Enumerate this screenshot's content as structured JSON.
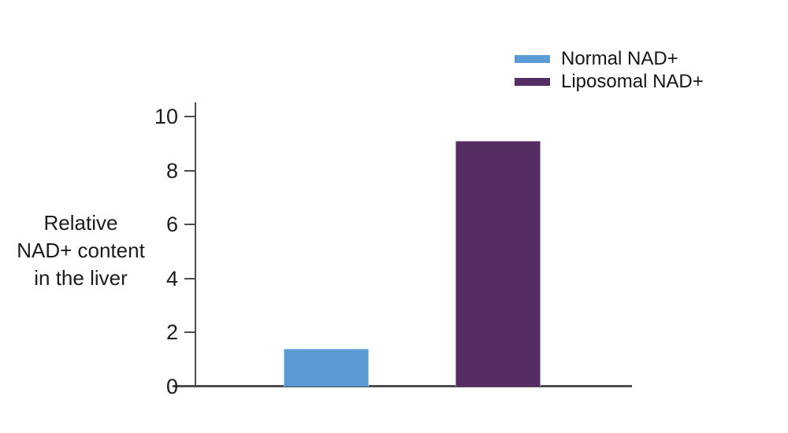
{
  "chart_data": {
    "type": "bar",
    "categories": [
      "Normal NAD+",
      "Liposomal NAD+"
    ],
    "series": [
      {
        "name": "Normal NAD+",
        "value": 1.4,
        "color": "#5b9bd5"
      },
      {
        "name": "Liposomal NAD+",
        "value": 9.1,
        "color": "#552d63"
      }
    ],
    "title": "",
    "xlabel": "",
    "ylabel_lines": [
      "Relative",
      "NAD+ content",
      "in the liver"
    ],
    "yticks": [
      0,
      2,
      4,
      6,
      8,
      10
    ],
    "ylim": [
      0,
      10.5
    ],
    "grid": false,
    "legend_position": "top-right",
    "axis_color": "#4d4d4d",
    "text_color": "#1c1c1c"
  }
}
